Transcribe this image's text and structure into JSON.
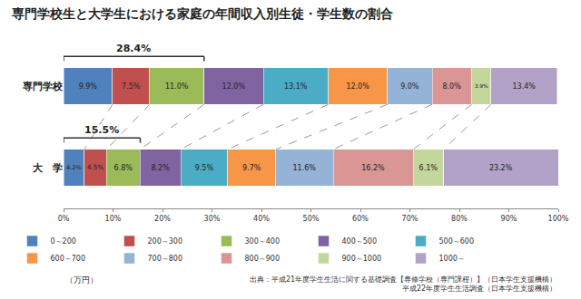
{
  "chart_data": {
    "type": "bar",
    "title": "専門学校生と大学生における家庭の年間収入別生徒・学生数の割合",
    "orientation": "horizontal",
    "stacked": true,
    "data_labels": true,
    "grid": false,
    "legend": "bottom",
    "categories": [
      "専門学校",
      "大　学"
    ],
    "series": [
      {
        "name": "0～200",
        "color": "#4F81BD",
        "values": [
          9.9,
          4.2
        ],
        "value_labels": [
          "9.9%",
          "4.2%"
        ]
      },
      {
        "name": "200～300",
        "color": "#C0504D",
        "values": [
          7.5,
          4.5
        ],
        "value_labels": [
          "7.5%",
          "4.5%"
        ]
      },
      {
        "name": "300～400",
        "color": "#9BBB59",
        "values": [
          11.0,
          6.8
        ],
        "value_labels": [
          "11.0%",
          "6.8%"
        ]
      },
      {
        "name": "400～500",
        "color": "#8064A2",
        "values": [
          12.0,
          8.2
        ],
        "value_labels": [
          "12.0%",
          "8.2%"
        ]
      },
      {
        "name": "500～600",
        "color": "#4BACC6",
        "values": [
          13.1,
          9.5
        ],
        "value_labels": [
          "13.1%",
          "9.5%"
        ]
      },
      {
        "name": "600～700",
        "color": "#F79646",
        "values": [
          12.0,
          9.7
        ],
        "value_labels": [
          "12.0%",
          "9.7%"
        ]
      },
      {
        "name": "700～800",
        "color": "#95B3D7",
        "values": [
          9.0,
          11.6
        ],
        "value_labels": [
          "9.0%",
          "11.6%"
        ]
      },
      {
        "name": "800～900",
        "color": "#D99694",
        "values": [
          8.0,
          16.2
        ],
        "value_labels": [
          "8.0%",
          "16.2%"
        ]
      },
      {
        "name": "900～1000",
        "color": "#C3D69B",
        "values": [
          3.9,
          6.1
        ],
        "value_labels": [
          "3.9%",
          "6.1%"
        ]
      },
      {
        "name": "1000～",
        "color": "#B3A2C7",
        "values": [
          13.4,
          23.2
        ],
        "value_labels": [
          "13.4%",
          "23.2%"
        ]
      }
    ],
    "xlim": [
      0,
      100
    ],
    "xticks": [
      {
        "value": 0,
        "label": "0%"
      },
      {
        "value": 10,
        "label": "10%"
      },
      {
        "value": 20,
        "label": "20%"
      },
      {
        "value": 30,
        "label": "30%"
      },
      {
        "value": 40,
        "label": "40%"
      },
      {
        "value": 50,
        "label": "50%"
      },
      {
        "value": 60,
        "label": "60%"
      },
      {
        "value": 70,
        "label": "70%"
      },
      {
        "value": 80,
        "label": "80%"
      },
      {
        "value": 90,
        "label": "90%"
      },
      {
        "value": 100,
        "label": "100%"
      }
    ],
    "annotations": [
      {
        "text": "28.4%",
        "category": "専門学校",
        "x_range": [
          0,
          28.4
        ]
      },
      {
        "text": "15.5%",
        "category": "大　学",
        "x_range": [
          0,
          15.5
        ]
      }
    ],
    "unit": "（万円）",
    "source": [
      "出典：平成21年度学生生活に関する基礎調査【専修学校（専門課程）】（日本学生支援機構）",
      "平成22年度学生生活調査（日本学生支援機構）"
    ]
  }
}
